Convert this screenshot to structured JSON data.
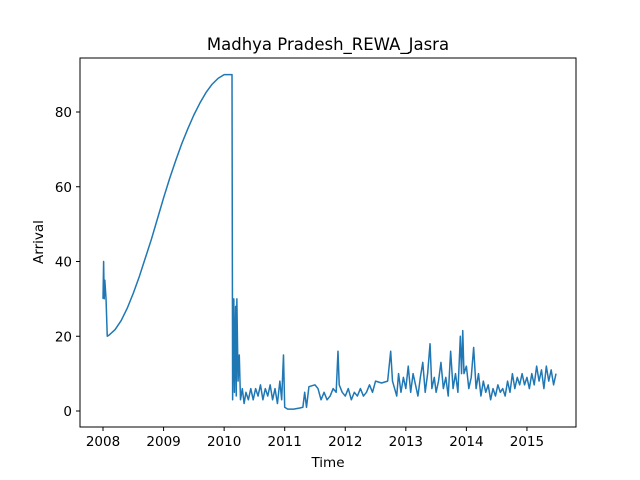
{
  "chart_data": {
    "type": "line",
    "title": "Madhya Pradesh_REWA_Jasra",
    "x_label": "Time",
    "y_label": "Arrival",
    "series": [
      {
        "name": "Arrival",
        "color": "#1f77b4",
        "x": [
          2008.0,
          2008.01,
          2008.02,
          2008.03,
          2008.05,
          2008.07,
          2008.1,
          2008.2,
          2008.3,
          2008.4,
          2008.5,
          2008.6,
          2008.7,
          2008.8,
          2008.9,
          2009.0,
          2009.1,
          2009.2,
          2009.3,
          2009.4,
          2009.5,
          2009.6,
          2009.7,
          2009.8,
          2009.9,
          2010.0,
          2010.13,
          2010.14,
          2010.16,
          2010.17,
          2010.19,
          2010.2,
          2010.21,
          2010.23,
          2010.25,
          2010.27,
          2010.3,
          2010.33,
          2010.36,
          2010.4,
          2010.44,
          2010.48,
          2010.52,
          2010.56,
          2010.6,
          2010.64,
          2010.68,
          2010.72,
          2010.76,
          2010.8,
          2010.84,
          2010.88,
          2010.92,
          2010.95,
          2010.98,
          2011.0,
          2011.05,
          2011.15,
          2011.25,
          2011.3,
          2011.33,
          2011.36,
          2011.4,
          2011.5,
          2011.55,
          2011.6,
          2011.65,
          2011.7,
          2011.75,
          2011.8,
          2011.85,
          2011.88,
          2011.9,
          2011.95,
          2012.0,
          2012.05,
          2012.1,
          2012.15,
          2012.2,
          2012.25,
          2012.3,
          2012.35,
          2012.4,
          2012.45,
          2012.5,
          2012.6,
          2012.7,
          2012.75,
          2012.78,
          2012.85,
          2012.88,
          2012.92,
          2012.96,
          2013.0,
          2013.04,
          2013.08,
          2013.12,
          2013.16,
          2013.2,
          2013.24,
          2013.28,
          2013.32,
          2013.36,
          2013.4,
          2013.43,
          2013.47,
          2013.5,
          2013.54,
          2013.58,
          2013.62,
          2013.66,
          2013.7,
          2013.74,
          2013.78,
          2013.82,
          2013.86,
          2013.9,
          2013.92,
          2013.94,
          2013.96,
          2014.0,
          2014.04,
          2014.08,
          2014.12,
          2014.16,
          2014.2,
          2014.24,
          2014.28,
          2014.32,
          2014.36,
          2014.4,
          2014.44,
          2014.48,
          2014.52,
          2014.56,
          2014.6,
          2014.64,
          2014.68,
          2014.72,
          2014.76,
          2014.8,
          2014.84,
          2014.88,
          2014.92,
          2014.96,
          2015.0,
          2015.04,
          2015.08,
          2015.12,
          2015.16,
          2015.2,
          2015.24,
          2015.28,
          2015.32,
          2015.36,
          2015.4,
          2015.44,
          2015.48
        ],
        "values": [
          30,
          40,
          30,
          35,
          30,
          20,
          20.3,
          21.8,
          24.2,
          27.5,
          31.5,
          36,
          41,
          46,
          51.5,
          57,
          62.2,
          67,
          71.5,
          75.5,
          79.2,
          82.4,
          85.2,
          87.4,
          89,
          90,
          90,
          3,
          30,
          5,
          28,
          4,
          30,
          8,
          15,
          3,
          6,
          2,
          5,
          3,
          6,
          3,
          6,
          4,
          7,
          3,
          6,
          4,
          7,
          3,
          6,
          2,
          8,
          3,
          15,
          1,
          0.5,
          0.5,
          0.8,
          1,
          5,
          1,
          6.5,
          7,
          6,
          3,
          5,
          3,
          4,
          6,
          5,
          16,
          7,
          5,
          4,
          6,
          3,
          5,
          4,
          6,
          4,
          5,
          7,
          5,
          8,
          7.5,
          8,
          16,
          8,
          4,
          10,
          5,
          9,
          6,
          12,
          5,
          10,
          7,
          4,
          9,
          13,
          5,
          10,
          18,
          6,
          9,
          5,
          8,
          13,
          6,
          9,
          4,
          16,
          6,
          10,
          5,
          20,
          10,
          21.5,
          10,
          12,
          6,
          9,
          17,
          6,
          10,
          4,
          8,
          5,
          7,
          3,
          6,
          4,
          7,
          5,
          6,
          4,
          8,
          5,
          10,
          6,
          9,
          7,
          10,
          7,
          9,
          6,
          10,
          7,
          12,
          8,
          11,
          6,
          12,
          8,
          11,
          7,
          10
        ]
      }
    ],
    "xlim": [
      2007.62,
      2015.81
    ],
    "xticks": [
      2008,
      2009,
      2010,
      2011,
      2012,
      2013,
      2014,
      2015
    ],
    "ylim": [
      -4.28,
      94.45
    ],
    "yticks": [
      0,
      20,
      40,
      60,
      80
    ]
  }
}
